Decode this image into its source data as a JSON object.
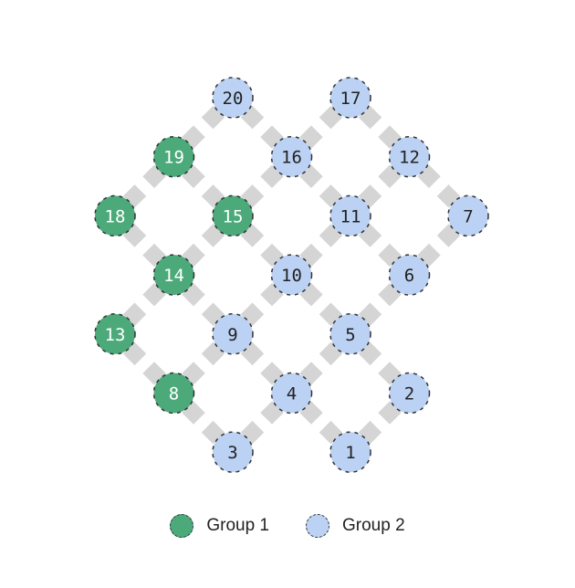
{
  "colors": {
    "group1": "#4caa7a",
    "group2": "#bcd2f4",
    "edge": "#d5d5d5",
    "border": "#333333",
    "text_group1": "#ffffff",
    "text_group2": "#222222"
  },
  "nodes": [
    {
      "id": "20",
      "group": 2,
      "row": 0,
      "col": 2
    },
    {
      "id": "17",
      "group": 2,
      "row": 0,
      "col": 4
    },
    {
      "id": "19",
      "group": 1,
      "row": 1,
      "col": 1
    },
    {
      "id": "16",
      "group": 2,
      "row": 1,
      "col": 3
    },
    {
      "id": "12",
      "group": 2,
      "row": 1,
      "col": 5
    },
    {
      "id": "18",
      "group": 1,
      "row": 2,
      "col": 0
    },
    {
      "id": "15",
      "group": 1,
      "row": 2,
      "col": 2
    },
    {
      "id": "11",
      "group": 2,
      "row": 2,
      "col": 4
    },
    {
      "id": "7",
      "group": 2,
      "row": 2,
      "col": 6
    },
    {
      "id": "14",
      "group": 1,
      "row": 3,
      "col": 1
    },
    {
      "id": "10",
      "group": 2,
      "row": 3,
      "col": 3
    },
    {
      "id": "6",
      "group": 2,
      "row": 3,
      "col": 5
    },
    {
      "id": "13",
      "group": 1,
      "row": 4,
      "col": 0
    },
    {
      "id": "9",
      "group": 2,
      "row": 4,
      "col": 2
    },
    {
      "id": "5",
      "group": 2,
      "row": 4,
      "col": 4
    },
    {
      "id": "8",
      "group": 1,
      "row": 5,
      "col": 1
    },
    {
      "id": "4",
      "group": 2,
      "row": 5,
      "col": 3
    },
    {
      "id": "2",
      "group": 2,
      "row": 5,
      "col": 5
    },
    {
      "id": "3",
      "group": 2,
      "row": 6,
      "col": 2
    },
    {
      "id": "1",
      "group": 2,
      "row": 6,
      "col": 4
    }
  ],
  "edges": [
    [
      "20",
      "19"
    ],
    [
      "20",
      "16"
    ],
    [
      "17",
      "16"
    ],
    [
      "17",
      "12"
    ],
    [
      "19",
      "18"
    ],
    [
      "19",
      "15"
    ],
    [
      "16",
      "15"
    ],
    [
      "16",
      "11"
    ],
    [
      "12",
      "11"
    ],
    [
      "12",
      "7"
    ],
    [
      "18",
      "14"
    ],
    [
      "15",
      "14"
    ],
    [
      "15",
      "10"
    ],
    [
      "11",
      "10"
    ],
    [
      "11",
      "6"
    ],
    [
      "7",
      "6"
    ],
    [
      "14",
      "13"
    ],
    [
      "14",
      "9"
    ],
    [
      "10",
      "9"
    ],
    [
      "10",
      "5"
    ],
    [
      "6",
      "5"
    ],
    [
      "13",
      "8"
    ],
    [
      "9",
      "8"
    ],
    [
      "9",
      "4"
    ],
    [
      "5",
      "4"
    ],
    [
      "5",
      "2"
    ],
    [
      "8",
      "3"
    ],
    [
      "4",
      "3"
    ],
    [
      "4",
      "1"
    ],
    [
      "2",
      "1"
    ]
  ],
  "legend": [
    {
      "label": "Group 1",
      "group": 1
    },
    {
      "label": "Group 2",
      "group": 2
    }
  ]
}
